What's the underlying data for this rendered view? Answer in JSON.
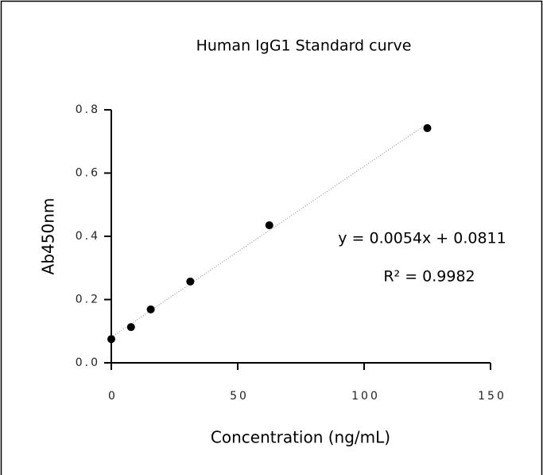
{
  "chart_data": {
    "type": "scatter",
    "title": "Human IgG1 Standard curve",
    "x_label": "Concentration (ng/mL)",
    "y_label": "Ab450nm",
    "series": [
      {
        "color": "#000000",
        "x": [
          0,
          7.8,
          15.6,
          31.25,
          62.5,
          125
        ],
        "values": [
          0.075,
          0.113,
          0.169,
          0.257,
          0.435,
          0.742
        ]
      }
    ],
    "trendline": {
      "slope": 0.0054,
      "intercept": 0.0811,
      "equation_label": "y = 0.0054x + 0.0811",
      "r2_label": "R² = 0.9982"
    },
    "xlim": [
      0,
      150
    ],
    "xticks": [
      0,
      50,
      100,
      150
    ],
    "ylim": [
      0,
      0.8
    ],
    "yticks": [
      {
        "value": 0,
        "label": "0.0"
      },
      0.2,
      0.4,
      0.6,
      0.8
    ]
  }
}
